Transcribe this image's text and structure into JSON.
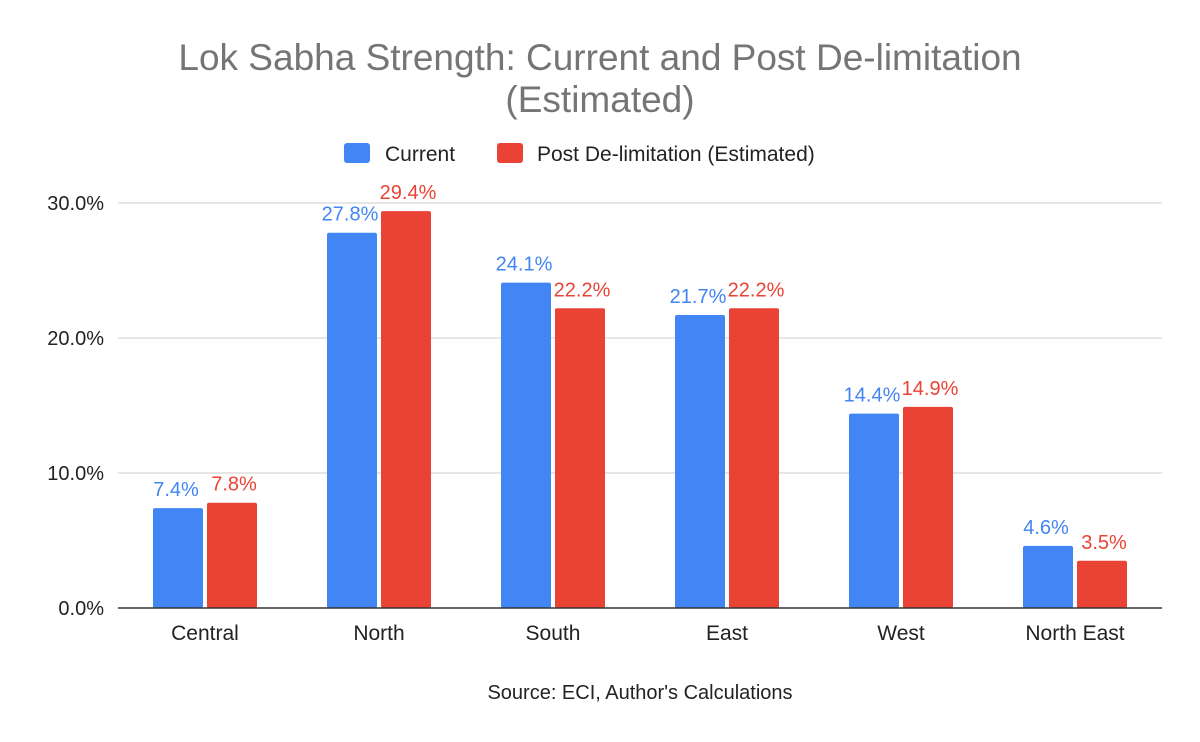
{
  "chart_data": {
    "type": "bar",
    "title": "Lok Sabha Strength: Current and Post De-limitation",
    "title_line2": "(Estimated)",
    "xlabel": "Source: ECI, Author's Calculations",
    "ylabel": "",
    "ylim": [
      0,
      30
    ],
    "yticks": [
      "0.0%",
      "10.0%",
      "20.0%",
      "30.0%"
    ],
    "grid": true,
    "legend_position": "top",
    "categories": [
      "Central",
      "North",
      "South",
      "East",
      "West",
      "North East"
    ],
    "series": [
      {
        "name": "Current",
        "color": "#4285F4",
        "values": [
          7.4,
          27.8,
          24.1,
          21.7,
          14.4,
          4.6
        ],
        "labels": [
          "7.4%",
          "27.8%",
          "24.1%",
          "21.7%",
          "14.4%",
          "4.6%"
        ]
      },
      {
        "name": "Post De-limitation (Estimated)",
        "color": "#EA4335",
        "values": [
          7.8,
          29.4,
          22.2,
          22.2,
          14.9,
          3.5
        ],
        "labels": [
          "7.8%",
          "29.4%",
          "22.2%",
          "22.2%",
          "14.9%",
          "3.5%"
        ]
      }
    ]
  }
}
